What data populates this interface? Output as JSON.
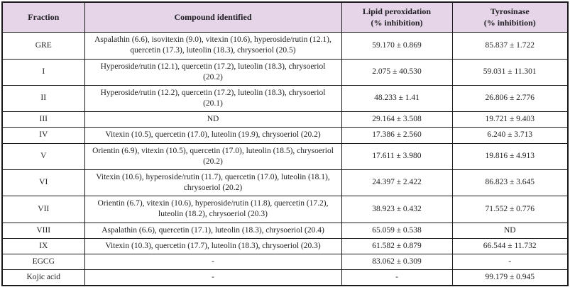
{
  "colors": {
    "header_bg": "#e6d4e8",
    "border": "#1a1a1a",
    "text": "#1f1f23"
  },
  "table": {
    "headers": [
      {
        "label": "Fraction"
      },
      {
        "label": "Compound identified"
      },
      {
        "label": "Lipid peroxidation\n(% inhibition)"
      },
      {
        "label": "Tyrosinase\n(% inhibition)"
      }
    ],
    "rows": [
      {
        "fraction": "GRE",
        "compound": "Aspalathin (6.6), isovitexin (9.0), vitexin (10.6), hyperoside/rutin (12.1), quercetin (17.3), luteolin (18.3), chrysoeriol (20.5)",
        "lipid_peroxidation": "59.170 ± 0.869",
        "tyrosinase": "85.837 ± 1.722"
      },
      {
        "fraction": "I",
        "compound": "Hyperoside/rutin (12.1), quercetin (17.2), luteolin (18.3), chrysoeriol (20.2)",
        "lipid_peroxidation": "2.075 ± 40.530",
        "tyrosinase": "59.031 ± 11.301"
      },
      {
        "fraction": "II",
        "compound": "Hyperoside/rutin (12.2), quercetin (17.2), luteolin (18.3), chrysoeriol (20.1)",
        "lipid_peroxidation": "48.233 ± 1.41",
        "tyrosinase": "26.806 ± 2.776"
      },
      {
        "fraction": "III",
        "compound": "ND",
        "lipid_peroxidation": "29.164 ± 3.508",
        "tyrosinase": "19.721 ± 9.403"
      },
      {
        "fraction": "IV",
        "compound": "Vitexin (10.5), quercetin (17.0), luteolin (19.9), chrysoeriol (20.2)",
        "lipid_peroxidation": "17.386 ± 2.560",
        "tyrosinase": "6.240 ± 3.713"
      },
      {
        "fraction": "V",
        "compound": "Orientin (6.9), vitexin (10.5), quercetin (17.0), luteolin (18.5), chrysoeriol (20.2)",
        "lipid_peroxidation": "17.611 ± 3.980",
        "tyrosinase": "19.816 ± 4.913"
      },
      {
        "fraction": "VI",
        "compound": "Vitexin (10.6), hyperoside/rutin (11.7), quercetin (17.0), luteolin (18.1), chrysoeriol (20.2)",
        "lipid_peroxidation": "24.397 ± 2.422",
        "tyrosinase": "86.823 ± 3.645"
      },
      {
        "fraction": "VII",
        "compound": "Orientin (6.7), vitexin (10.6), hyperoside/rutin (11.8), quercetin (17.2), luteolin (18.2), chrysoeriol (20.3)",
        "lipid_peroxidation": "38.923 ± 0.432",
        "tyrosinase": "71.552 ± 0.776"
      },
      {
        "fraction": "VIII",
        "compound": "Aspalathin (6.6), quercetin (17.1), luteolin (18.3), chrysoeriol (20.4)",
        "lipid_peroxidation": "65.059 ± 0.538",
        "tyrosinase": "ND"
      },
      {
        "fraction": "IX",
        "compound": "Vitexin (10.3), quercetin (17.7), luteolin (18.3), chrysoeriol (20.3)",
        "lipid_peroxidation": "61.582 ± 0.879",
        "tyrosinase": "66.544 ± 11.732"
      },
      {
        "fraction": "EGCG",
        "compound": "-",
        "lipid_peroxidation": "83.062 ± 0.309",
        "tyrosinase": "-"
      },
      {
        "fraction": "Kojic acid",
        "compound": "-",
        "lipid_peroxidation": "-",
        "tyrosinase": "99.179 ± 0.945"
      }
    ]
  }
}
